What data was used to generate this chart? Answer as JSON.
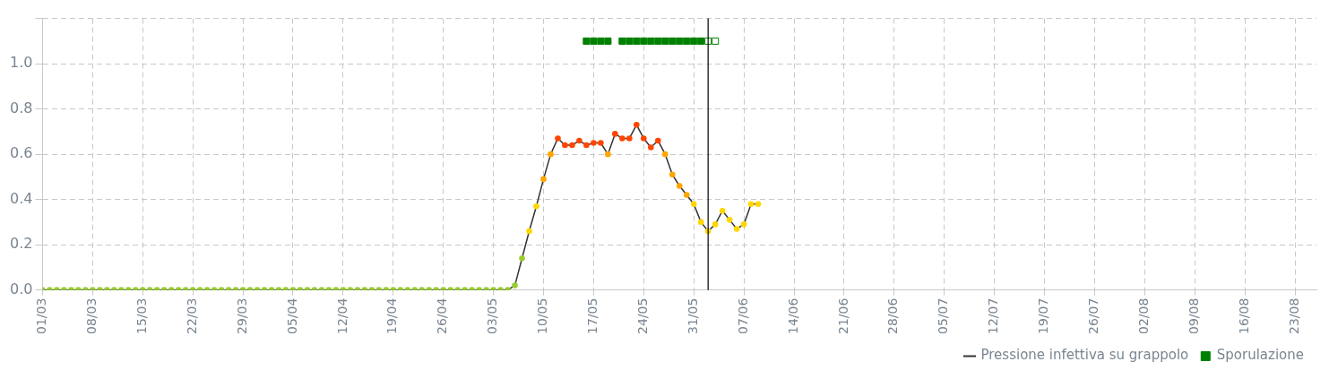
{
  "chart_data": {
    "type": "line",
    "xlim": [
      "--03-01",
      "--08-26"
    ],
    "ylim": [
      0,
      1.2
    ],
    "yticks": [
      {
        "value": 0,
        "label": "0.0"
      },
      {
        "value": 0.2,
        "label": "0.2"
      },
      {
        "value": 0.4,
        "label": "0.4"
      },
      {
        "value": 0.6,
        "label": "0.6"
      },
      {
        "value": 0.8,
        "label": "0.8"
      },
      {
        "value": 1,
        "label": "1.0"
      },
      {
        "value": 1.2,
        "label": null
      }
    ],
    "xticks": [
      {
        "value": "--03-01",
        "label": "01/03"
      },
      {
        "value": "--03-08",
        "label": "08/03"
      },
      {
        "value": "--03-15",
        "label": "15/03"
      },
      {
        "value": "--03-22",
        "label": "22/03"
      },
      {
        "value": "--03-29",
        "label": "29/03"
      },
      {
        "value": "--04-05",
        "label": "05/04"
      },
      {
        "value": "--04-12",
        "label": "12/04"
      },
      {
        "value": "--04-19",
        "label": "19/04"
      },
      {
        "value": "--04-26",
        "label": "26/04"
      },
      {
        "value": "--05-03",
        "label": "03/05"
      },
      {
        "value": "--05-10",
        "label": "10/05"
      },
      {
        "value": "--05-17",
        "label": "17/05"
      },
      {
        "value": "--05-24",
        "label": "24/05"
      },
      {
        "value": "--05-31",
        "label": "31/05"
      },
      {
        "value": "--06-07",
        "label": "07/06"
      },
      {
        "value": "--06-14",
        "label": "14/06"
      },
      {
        "value": "--06-21",
        "label": "21/06"
      },
      {
        "value": "--06-28",
        "label": "28/06"
      },
      {
        "value": "--07-05",
        "label": "05/07"
      },
      {
        "value": "--07-12",
        "label": "12/07"
      },
      {
        "value": "--07-19",
        "label": "19/07"
      },
      {
        "value": "--07-26",
        "label": "26/07"
      },
      {
        "value": "--08-02",
        "label": "02/08"
      },
      {
        "value": "--08-09",
        "label": "09/08"
      },
      {
        "value": "--08-16",
        "label": "16/08"
      },
      {
        "value": "--08-23",
        "label": "23/08"
      }
    ],
    "grid": true,
    "legend": "bottom right",
    "marker": "circle",
    "line_style": "solid",
    "ref_lines": [
      {
        "axis": "x",
        "value": "--06-02",
        "color": "#000000"
      }
    ],
    "series": [
      {
        "name": "Pressione infettiva su grappolo",
        "type": "line",
        "color": "#333333",
        "x": [
          "--03-01",
          "--03-02",
          "--03-03",
          "--03-04",
          "--03-05",
          "--03-06",
          "--03-07",
          "--03-08",
          "--03-09",
          "--03-10",
          "--03-11",
          "--03-12",
          "--03-13",
          "--03-14",
          "--03-15",
          "--03-16",
          "--03-17",
          "--03-18",
          "--03-19",
          "--03-20",
          "--03-21",
          "--03-22",
          "--03-23",
          "--03-24",
          "--03-25",
          "--03-26",
          "--03-27",
          "--03-28",
          "--03-29",
          "--03-30",
          "--03-31",
          "--04-01",
          "--04-02",
          "--04-03",
          "--04-04",
          "--04-05",
          "--04-06",
          "--04-07",
          "--04-08",
          "--04-09",
          "--04-10",
          "--04-11",
          "--04-12",
          "--04-13",
          "--04-14",
          "--04-15",
          "--04-16",
          "--04-17",
          "--04-18",
          "--04-19",
          "--04-20",
          "--04-21",
          "--04-22",
          "--04-23",
          "--04-24",
          "--04-25",
          "--04-26",
          "--04-27",
          "--04-28",
          "--04-29",
          "--04-30",
          "--05-01",
          "--05-02",
          "--05-03",
          "--05-04",
          "--05-05",
          "--05-06",
          "--05-07",
          "--05-08",
          "--05-09",
          "--05-10",
          "--05-11",
          "--05-12",
          "--05-13",
          "--05-14",
          "--05-15",
          "--05-16",
          "--05-17",
          "--05-18",
          "--05-19",
          "--05-20",
          "--05-21",
          "--05-22",
          "--05-23",
          "--05-24",
          "--05-25",
          "--05-26",
          "--05-27",
          "--05-28",
          "--05-29",
          "--05-30",
          "--05-31",
          "--06-01",
          "--06-02",
          "--06-03",
          "--06-04",
          "--06-05",
          "--06-06",
          "--06-07",
          "--06-08",
          "--06-09"
        ],
        "values": [
          0,
          0,
          0,
          0,
          0,
          0,
          0,
          0,
          0,
          0,
          0,
          0,
          0,
          0,
          0,
          0,
          0,
          0,
          0,
          0,
          0,
          0,
          0,
          0,
          0,
          0,
          0,
          0,
          0,
          0,
          0,
          0,
          0,
          0,
          0,
          0,
          0,
          0,
          0,
          0,
          0,
          0,
          0,
          0,
          0,
          0,
          0,
          0,
          0,
          0,
          0,
          0,
          0,
          0,
          0,
          0,
          0,
          0,
          0,
          0,
          0,
          0,
          0,
          0,
          0,
          0,
          0.02,
          0.14,
          0.26,
          0.37,
          0.49,
          0.6,
          0.67,
          0.64,
          0.64,
          0.66,
          0.64,
          0.65,
          0.65,
          0.6,
          0.69,
          0.67,
          0.67,
          0.73,
          0.67,
          0.63,
          0.66,
          0.6,
          0.51,
          0.46,
          0.42,
          0.38,
          0.3,
          0.26,
          0.29,
          0.35,
          0.31,
          0.27,
          0.29,
          0.38,
          0.38
        ],
        "colors": [
          "#9acd32",
          "#9acd32",
          "#9acd32",
          "#9acd32",
          "#9acd32",
          "#9acd32",
          "#9acd32",
          "#9acd32",
          "#9acd32",
          "#9acd32",
          "#9acd32",
          "#9acd32",
          "#9acd32",
          "#9acd32",
          "#9acd32",
          "#9acd32",
          "#9acd32",
          "#9acd32",
          "#9acd32",
          "#9acd32",
          "#9acd32",
          "#9acd32",
          "#9acd32",
          "#9acd32",
          "#9acd32",
          "#9acd32",
          "#9acd32",
          "#9acd32",
          "#9acd32",
          "#9acd32",
          "#9acd32",
          "#9acd32",
          "#9acd32",
          "#9acd32",
          "#9acd32",
          "#9acd32",
          "#9acd32",
          "#9acd32",
          "#9acd32",
          "#9acd32",
          "#9acd32",
          "#9acd32",
          "#9acd32",
          "#9acd32",
          "#9acd32",
          "#9acd32",
          "#9acd32",
          "#9acd32",
          "#9acd32",
          "#9acd32",
          "#9acd32",
          "#9acd32",
          "#9acd32",
          "#9acd32",
          "#9acd32",
          "#9acd32",
          "#9acd32",
          "#9acd32",
          "#9acd32",
          "#9acd32",
          "#9acd32",
          "#9acd32",
          "#9acd32",
          "#9acd32",
          "#9acd32",
          "#9acd32",
          "#9acd32",
          "#9acd32",
          "#ffd700",
          "#ffd700",
          "#ffa500",
          "#ffa500",
          "#ff4500",
          "#ff4500",
          "#ff4500",
          "#ff4500",
          "#ff4500",
          "#ff4500",
          "#ff4500",
          "#ffa500",
          "#ff4500",
          "#ff4500",
          "#ff4500",
          "#ff4500",
          "#ff4500",
          "#ff4500",
          "#ff4500",
          "#ffa500",
          "#ffa500",
          "#ffa500",
          "#ffa500",
          "#ffd700",
          "#ffd700",
          "#ffd700",
          "#ffd700",
          "#ffd700",
          "#ffd700",
          "#ffd700",
          "#ffd700",
          "#ffd700",
          "#ffd700"
        ]
      },
      {
        "name": "Sporulazione",
        "type": "scatter",
        "marker": "square",
        "color": "#008000",
        "x": [
          "--05-16",
          "--05-17",
          "--05-18",
          "--05-19",
          "--05-20",
          "--05-21",
          "--05-22",
          "--05-23",
          "--05-24",
          "--05-25",
          "--05-26",
          "--05-27",
          "--05-28",
          "--05-29",
          "--05-30",
          "--05-31",
          "--06-01",
          "--06-02",
          "--06-03"
        ],
        "values": [
          1.1,
          1.1,
          1.1,
          1.1,
          null,
          1.1,
          1.1,
          1.1,
          1.1,
          1.1,
          1.1,
          1.1,
          1.1,
          1.1,
          1.1,
          1.1,
          1.1,
          1.1,
          1.1
        ],
        "colors": [
          "#008000",
          "#008000",
          "#008000",
          "#008000",
          null,
          "#008000",
          "#008000",
          "#008000",
          "#008000",
          "#008000",
          "#008000",
          "#008000",
          "#008000",
          "#008000",
          "#008000",
          "#008000",
          "#008000",
          "#ffffff",
          "#ffffff"
        ]
      }
    ]
  }
}
